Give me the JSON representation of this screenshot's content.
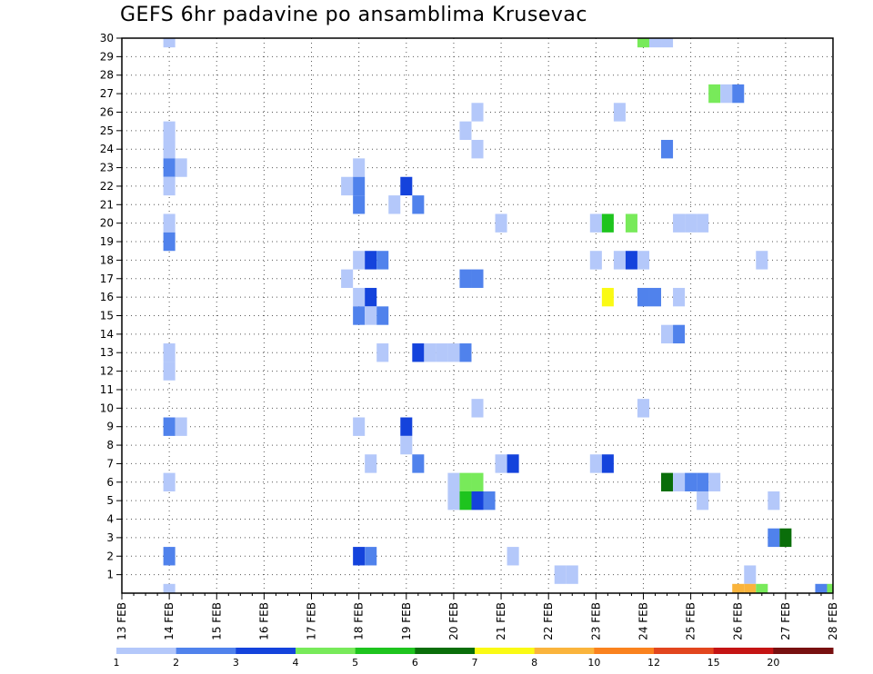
{
  "chart_data": {
    "type": "heatmap",
    "title": "GEFS 6hr padavine po ansamblima Krusevac",
    "xlabel": "",
    "ylabel": "",
    "x_ticks": [
      "13 FEB",
      "14 FEB",
      "15 FEB",
      "16 FEB",
      "17 FEB",
      "18 FEB",
      "19 FEB",
      "20 FEB",
      "21 FEB",
      "22 FEB",
      "23 FEB",
      "24 FEB",
      "25 FEB",
      "26 FEB",
      "27 FEB",
      "28 FEB"
    ],
    "y_ticks": [
      1,
      2,
      3,
      4,
      5,
      6,
      7,
      8,
      9,
      10,
      11,
      12,
      13,
      14,
      15,
      16,
      17,
      18,
      19,
      20,
      21,
      22,
      23,
      24,
      25,
      26,
      27,
      28,
      29,
      30
    ],
    "xlim": [
      0,
      60
    ],
    "ylim": [
      0,
      30
    ],
    "grid": true,
    "x_unit": "6-hour step from 13 FEB 00Z",
    "y_unit": "ensemble member",
    "colorbar": {
      "labels": [
        "1",
        "2",
        "3",
        "4",
        "5",
        "6",
        "7",
        "8",
        "10",
        "12",
        "15",
        "20"
      ],
      "colors": [
        "#b4c8fa",
        "#5082ec",
        "#1443dc",
        "#78ea5a",
        "#1ec41e",
        "#0a6e0a",
        "#fafa14",
        "#fab43c",
        "#fa821e",
        "#e2461e",
        "#c41414",
        "#781010"
      ]
    },
    "cells": [
      {
        "t": 4,
        "m": 30,
        "v": 1
      },
      {
        "t": 44,
        "m": 30,
        "v": 4
      },
      {
        "t": 45,
        "m": 30,
        "v": 1
      },
      {
        "t": 46,
        "m": 30,
        "v": 1
      },
      {
        "t": 50,
        "m": 27,
        "v": 4
      },
      {
        "t": 51,
        "m": 27,
        "v": 1
      },
      {
        "t": 52,
        "m": 27,
        "v": 2
      },
      {
        "t": 30,
        "m": 26,
        "v": 1
      },
      {
        "t": 42,
        "m": 26,
        "v": 1
      },
      {
        "t": 4,
        "m": 25,
        "v": 1
      },
      {
        "t": 29,
        "m": 25,
        "v": 1
      },
      {
        "t": 4,
        "m": 24,
        "v": 1
      },
      {
        "t": 30,
        "m": 24,
        "v": 1
      },
      {
        "t": 46,
        "m": 24,
        "v": 2
      },
      {
        "t": 4,
        "m": 23,
        "v": 2
      },
      {
        "t": 5,
        "m": 23,
        "v": 1
      },
      {
        "t": 20,
        "m": 23,
        "v": 1
      },
      {
        "t": 4,
        "m": 22,
        "v": 1
      },
      {
        "t": 19,
        "m": 22,
        "v": 1
      },
      {
        "t": 20,
        "m": 22,
        "v": 2
      },
      {
        "t": 24,
        "m": 22,
        "v": 3
      },
      {
        "t": 20,
        "m": 21,
        "v": 2
      },
      {
        "t": 23,
        "m": 21,
        "v": 1
      },
      {
        "t": 25,
        "m": 21,
        "v": 2
      },
      {
        "t": 4,
        "m": 20,
        "v": 1
      },
      {
        "t": 32,
        "m": 20,
        "v": 1
      },
      {
        "t": 40,
        "m": 20,
        "v": 1
      },
      {
        "t": 41,
        "m": 20,
        "v": 5
      },
      {
        "t": 43,
        "m": 20,
        "v": 4
      },
      {
        "t": 47,
        "m": 20,
        "v": 1
      },
      {
        "t": 48,
        "m": 20,
        "v": 1
      },
      {
        "t": 49,
        "m": 20,
        "v": 1
      },
      {
        "t": 4,
        "m": 19,
        "v": 2
      },
      {
        "t": 20,
        "m": 18,
        "v": 1
      },
      {
        "t": 21,
        "m": 18,
        "v": 3
      },
      {
        "t": 22,
        "m": 18,
        "v": 2
      },
      {
        "t": 40,
        "m": 18,
        "v": 1
      },
      {
        "t": 42,
        "m": 18,
        "v": 1
      },
      {
        "t": 43,
        "m": 18,
        "v": 3
      },
      {
        "t": 44,
        "m": 18,
        "v": 1
      },
      {
        "t": 54,
        "m": 18,
        "v": 1
      },
      {
        "t": 19,
        "m": 17,
        "v": 1
      },
      {
        "t": 29,
        "m": 17,
        "v": 2
      },
      {
        "t": 30,
        "m": 17,
        "v": 2
      },
      {
        "t": 20,
        "m": 16,
        "v": 1
      },
      {
        "t": 21,
        "m": 16,
        "v": 3
      },
      {
        "t": 41,
        "m": 16,
        "v": 7
      },
      {
        "t": 44,
        "m": 16,
        "v": 2
      },
      {
        "t": 45,
        "m": 16,
        "v": 2
      },
      {
        "t": 47,
        "m": 16,
        "v": 1
      },
      {
        "t": 20,
        "m": 15,
        "v": 2
      },
      {
        "t": 21,
        "m": 15,
        "v": 1
      },
      {
        "t": 22,
        "m": 15,
        "v": 2
      },
      {
        "t": 46,
        "m": 14,
        "v": 1
      },
      {
        "t": 47,
        "m": 14,
        "v": 2
      },
      {
        "t": 4,
        "m": 13,
        "v": 1
      },
      {
        "t": 22,
        "m": 13,
        "v": 1
      },
      {
        "t": 25,
        "m": 13,
        "v": 3
      },
      {
        "t": 26,
        "m": 13,
        "v": 1
      },
      {
        "t": 27,
        "m": 13,
        "v": 1
      },
      {
        "t": 28,
        "m": 13,
        "v": 1
      },
      {
        "t": 29,
        "m": 13,
        "v": 2
      },
      {
        "t": 4,
        "m": 12,
        "v": 1
      },
      {
        "t": 30,
        "m": 10,
        "v": 1
      },
      {
        "t": 44,
        "m": 10,
        "v": 1
      },
      {
        "t": 4,
        "m": 9,
        "v": 2
      },
      {
        "t": 5,
        "m": 9,
        "v": 1
      },
      {
        "t": 20,
        "m": 9,
        "v": 1
      },
      {
        "t": 24,
        "m": 9,
        "v": 3
      },
      {
        "t": 24,
        "m": 8,
        "v": 1
      },
      {
        "t": 21,
        "m": 7,
        "v": 1
      },
      {
        "t": 25,
        "m": 7,
        "v": 2
      },
      {
        "t": 32,
        "m": 7,
        "v": 1
      },
      {
        "t": 33,
        "m": 7,
        "v": 3
      },
      {
        "t": 40,
        "m": 7,
        "v": 1
      },
      {
        "t": 41,
        "m": 7,
        "v": 3
      },
      {
        "t": 4,
        "m": 6,
        "v": 1
      },
      {
        "t": 28,
        "m": 6,
        "v": 1
      },
      {
        "t": 29,
        "m": 6,
        "v": 4
      },
      {
        "t": 30,
        "m": 6,
        "v": 4
      },
      {
        "t": 46,
        "m": 6,
        "v": 6
      },
      {
        "t": 47,
        "m": 6,
        "v": 1
      },
      {
        "t": 48,
        "m": 6,
        "v": 2
      },
      {
        "t": 49,
        "m": 6,
        "v": 2
      },
      {
        "t": 50,
        "m": 6,
        "v": 1
      },
      {
        "t": 28,
        "m": 5,
        "v": 1
      },
      {
        "t": 29,
        "m": 5,
        "v": 5
      },
      {
        "t": 30,
        "m": 5,
        "v": 3
      },
      {
        "t": 31,
        "m": 5,
        "v": 2
      },
      {
        "t": 49,
        "m": 5,
        "v": 1
      },
      {
        "t": 55,
        "m": 5,
        "v": 1
      },
      {
        "t": 55,
        "m": 3,
        "v": 2
      },
      {
        "t": 56,
        "m": 3,
        "v": 6
      },
      {
        "t": 4,
        "m": 2,
        "v": 2
      },
      {
        "t": 20,
        "m": 2,
        "v": 3
      },
      {
        "t": 21,
        "m": 2,
        "v": 2
      },
      {
        "t": 33,
        "m": 2,
        "v": 1
      },
      {
        "t": 37,
        "m": 1,
        "v": 1
      },
      {
        "t": 38,
        "m": 1,
        "v": 1
      },
      {
        "t": 53,
        "m": 1,
        "v": 1
      },
      {
        "t": 4,
        "m": 0,
        "v": 1
      },
      {
        "t": 52,
        "m": 0,
        "v": 8
      },
      {
        "t": 53,
        "m": 0,
        "v": 8
      },
      {
        "t": 54,
        "m": 0,
        "v": 4
      },
      {
        "t": 59,
        "m": 0,
        "v": 2
      },
      {
        "t": 60,
        "m": 0,
        "v": 4
      }
    ]
  }
}
